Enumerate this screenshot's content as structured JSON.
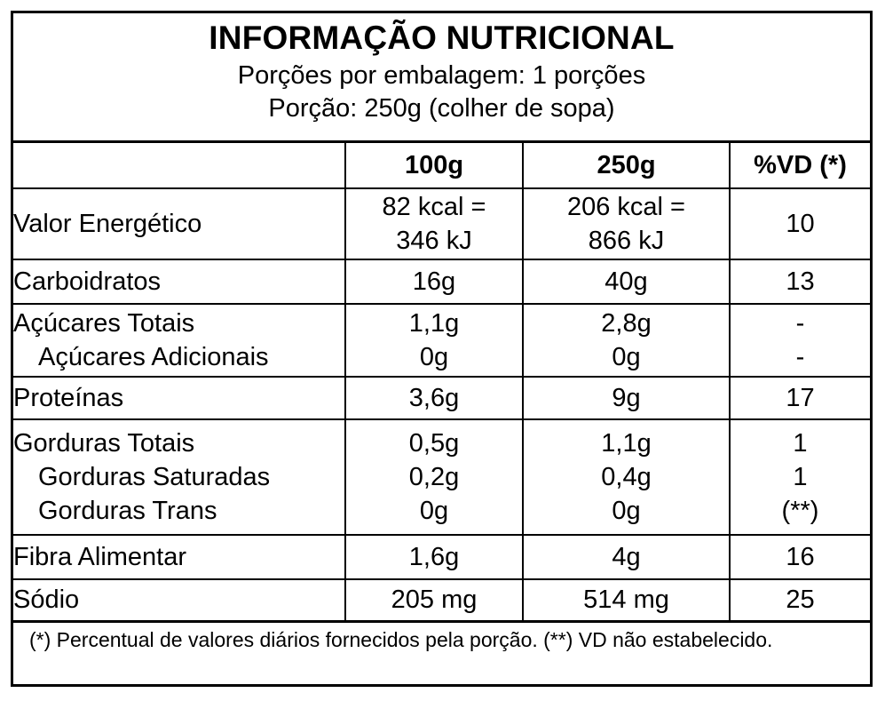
{
  "header": {
    "title": "INFORMAÇÃO NUTRICIONAL",
    "servings_per_package": "Porções por embalagem:  1 porções",
    "serving_size": "Porção: 250g (colher de sopa)"
  },
  "columns": {
    "blank": "",
    "col1": "100g",
    "col2": "250g",
    "col3": "%VD (*)"
  },
  "rows": {
    "energy": {
      "label": "Valor Energético",
      "v100_line1": "82 kcal =",
      "v100_line2": "346 kJ",
      "v250_line1": "206 kcal =",
      "v250_line2": "866  kJ",
      "vd": "10"
    },
    "carbs": {
      "label": "Carboidratos",
      "v100": "16g",
      "v250": "40g",
      "vd": "13"
    },
    "sugars": {
      "label": "Açúcares Totais",
      "v100": "1,1g",
      "v250": "2,8g",
      "vd": "-",
      "sub_label": "Açúcares Adicionais",
      "sub_v100": "0g",
      "sub_v250": "0g",
      "sub_vd": "-"
    },
    "protein": {
      "label": "Proteínas",
      "v100": "3,6g",
      "v250": "9g",
      "vd": "17"
    },
    "fats": {
      "label": "Gorduras Totais",
      "v100": "0,5g",
      "v250": "1,1g",
      "vd": "1",
      "sat_label": "Gorduras Saturadas",
      "sat_v100": "0,2g",
      "sat_v250": "0,4g",
      "sat_vd": "1",
      "trans_label": "Gorduras Trans",
      "trans_v100": "0g",
      "trans_v250": "0g",
      "trans_vd": "(**)"
    },
    "fiber": {
      "label": "Fibra Alimentar",
      "v100": "1,6g",
      "v250": "4g",
      "vd": "16"
    },
    "sodium": {
      "label": "Sódio",
      "v100": "205 mg",
      "v250": "514 mg",
      "vd": "25"
    }
  },
  "footnote": "(*) Percentual de valores diários fornecidos pela porção. (**) VD não estabelecido."
}
